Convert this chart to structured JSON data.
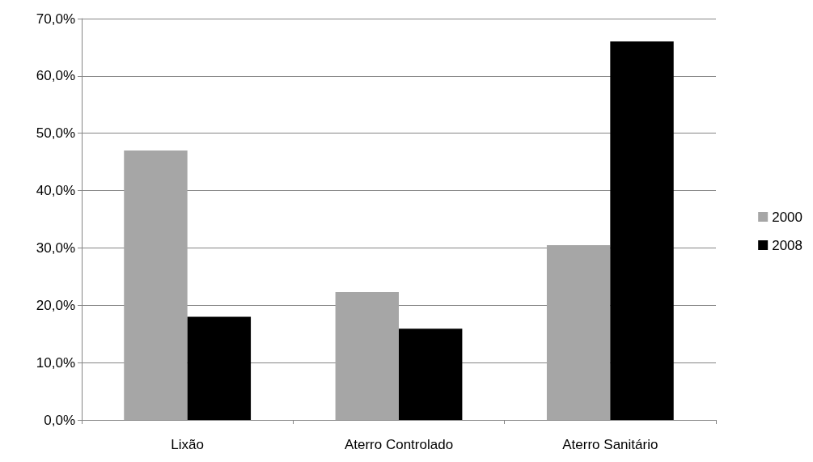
{
  "chart_data": {
    "type": "bar",
    "categories": [
      "Lixão",
      "Aterro Controlado",
      "Aterro Sanitário"
    ],
    "series": [
      {
        "name": "2000",
        "color": "#a6a6a6",
        "values": [
          47.0,
          22.3,
          30.5
        ]
      },
      {
        "name": "2008",
        "color": "#000000",
        "values": [
          18.0,
          15.9,
          66.0
        ]
      }
    ],
    "ylim": [
      0,
      70
    ],
    "yticks": [
      {
        "value": 0,
        "label": "0,0%"
      },
      {
        "value": 10,
        "label": "10,0%"
      },
      {
        "value": 20,
        "label": "20,0%"
      },
      {
        "value": 30,
        "label": "30,0%"
      },
      {
        "value": 40,
        "label": "40,0%"
      },
      {
        "value": 50,
        "label": "50,0%"
      },
      {
        "value": 60,
        "label": "60,0%"
      },
      {
        "value": 70,
        "label": "70,0%"
      }
    ],
    "grid": "y",
    "legend": "right"
  }
}
